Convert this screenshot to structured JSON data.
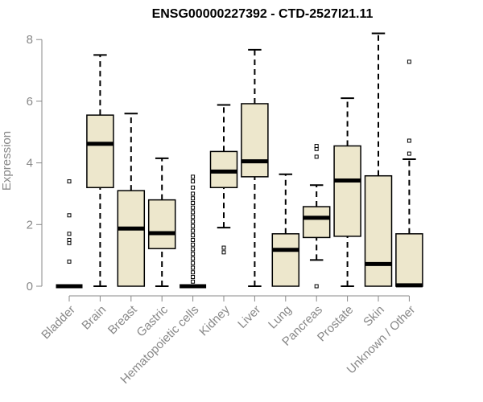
{
  "chart_data": {
    "type": "boxplot",
    "title": "ENSG00000227392 - CTD-2527I21.11",
    "xlabel": "",
    "ylabel": "Expression",
    "ylim": [
      0,
      8.2
    ],
    "yticks": [
      0,
      2,
      4,
      6,
      8
    ],
    "colors": {
      "box_fill": "#ede7cc",
      "box_stroke": "#000000",
      "axis": "#888888"
    },
    "categories": [
      "Bladder",
      "Brain",
      "Breast",
      "Gastric",
      "Hematopoietic cells",
      "Kidney",
      "Liver",
      "Lung",
      "Pancreas",
      "Prostate",
      "Skin",
      "Unknown / Other"
    ],
    "boxes": [
      {
        "q1": 0,
        "median": 0,
        "q3": 0,
        "low": 0,
        "high": 0,
        "outliers": [
          0.8,
          1.4,
          1.5,
          1.7,
          2.3,
          3.4
        ]
      },
      {
        "q1": 3.2,
        "median": 4.62,
        "q3": 5.55,
        "low": 0,
        "high": 7.5,
        "outliers": []
      },
      {
        "q1": 0,
        "median": 1.87,
        "q3": 3.1,
        "low": 0,
        "high": 5.6,
        "outliers": []
      },
      {
        "q1": 1.22,
        "median": 1.72,
        "q3": 2.8,
        "low": 0,
        "high": 4.15,
        "outliers": []
      },
      {
        "q1": 0,
        "median": 0,
        "q3": 0,
        "low": 0,
        "high": 0,
        "outliers": [
          0.15,
          0.3,
          0.45,
          0.6,
          0.75,
          0.9,
          1.05,
          1.2,
          1.35,
          1.5,
          1.65,
          1.8,
          1.95,
          2.1,
          2.25,
          2.4,
          2.55,
          2.7,
          2.85,
          3.0,
          3.2,
          3.4,
          3.55
        ]
      },
      {
        "q1": 3.2,
        "median": 3.72,
        "q3": 4.37,
        "low": 1.9,
        "high": 5.88,
        "outliers": [
          1.1,
          1.25
        ]
      },
      {
        "q1": 3.55,
        "median": 4.05,
        "q3": 5.92,
        "low": 0,
        "high": 7.67,
        "outliers": []
      },
      {
        "q1": 0,
        "median": 1.18,
        "q3": 1.7,
        "low": 0,
        "high": 3.63,
        "outliers": []
      },
      {
        "q1": 1.58,
        "median": 2.22,
        "q3": 2.58,
        "low": 0.85,
        "high": 3.28,
        "outliers": [
          0,
          4.2,
          4.45,
          4.55
        ]
      },
      {
        "q1": 1.62,
        "median": 3.43,
        "q3": 4.55,
        "low": 0,
        "high": 6.1,
        "outliers": []
      },
      {
        "q1": 0,
        "median": 0.72,
        "q3": 3.58,
        "low": 0,
        "high": 8.2,
        "outliers": []
      },
      {
        "q1": 0,
        "median": 0.03,
        "q3": 1.7,
        "low": 0,
        "high": 4.12,
        "outliers": [
          4.3,
          4.72,
          7.28
        ]
      }
    ]
  }
}
